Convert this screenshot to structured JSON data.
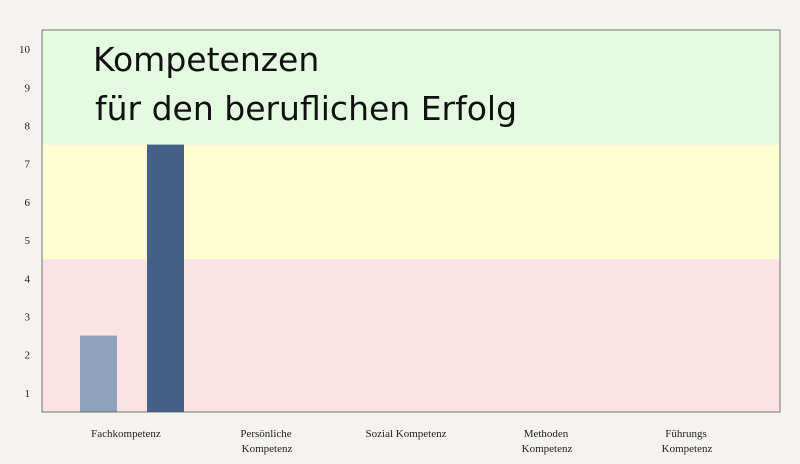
{
  "chart_data": {
    "type": "bar",
    "title_lines": [
      "Kompetenzen",
      "für den beruflichen Erfolg"
    ],
    "categories": [
      "Fachkompetenz",
      "Persönliche Kompetenz",
      "Sozial Kompetenz",
      "Methoden Kompetenz",
      "Führungs Kompetenz"
    ],
    "category_label_lines": [
      [
        "Fachkompetenz"
      ],
      [
        "Persönliche",
        "Kompetenz"
      ],
      [
        "Sozial Kompetenz"
      ],
      [
        "Methoden",
        "Kompetenz"
      ],
      [
        "Führungs",
        "Kompetenz"
      ]
    ],
    "series": [
      {
        "values": [
          2,
          0,
          0,
          0,
          0
        ],
        "color": "#8fa2bc"
      },
      {
        "values": [
          7,
          0,
          0,
          0,
          0
        ],
        "color": "#455f88"
      }
    ],
    "y_ticks": [
      1,
      2,
      3,
      4,
      5,
      6,
      7,
      8,
      9,
      10
    ],
    "ylim": [
      0.5,
      10.5
    ],
    "grid": false,
    "bands": [
      {
        "from": 0.5,
        "to": 4.5,
        "color": "#fbe3e3"
      },
      {
        "from": 4.5,
        "to": 7.5,
        "color": "#fefdd1"
      },
      {
        "from": 7.5,
        "to": 10.5,
        "color": "#e4fbe1"
      }
    ]
  }
}
